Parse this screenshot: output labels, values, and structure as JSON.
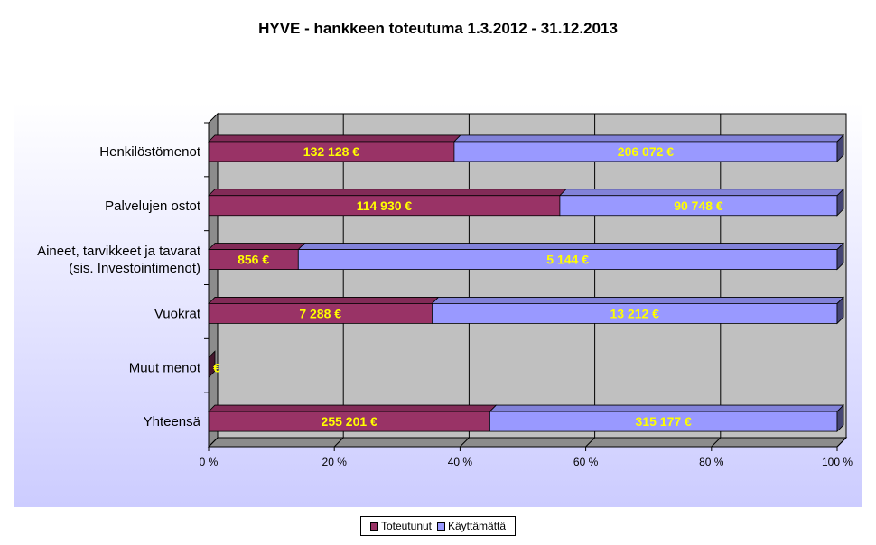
{
  "chart_data": {
    "type": "bar",
    "orientation": "horizontal",
    "stacked": "percent",
    "title": "HYVE - hankkeen toteutuma 1.3.2012 - 31.12.2013",
    "categories": [
      [
        "Henkilöstömenot"
      ],
      [
        "Palvelujen ostot"
      ],
      [
        "Aineet, tarvikkeet ja tavarat",
        "(sis. Investointimenot)"
      ],
      [
        "Vuokrat"
      ],
      [
        "Muut menot"
      ],
      [
        "Yhteensä"
      ]
    ],
    "series": [
      {
        "name": "Toteutunut",
        "color": "#993366",
        "values": [
          132128,
          114930,
          856,
          7288,
          0,
          255201
        ],
        "labels": [
          "132 128 €",
          "114 930 €",
          "856 €",
          "7 288 €",
          "€",
          "255 201 €"
        ]
      },
      {
        "name": "Käyttämättä",
        "color": "#9999ff",
        "values": [
          206072,
          90748,
          5144,
          13212,
          0,
          315177
        ],
        "labels": [
          "206 072 €",
          "90 748 €",
          "5 144 €",
          "13 212 €",
          "",
          "315 177 €"
        ]
      }
    ],
    "x_ticks": [
      "0 %",
      "20 %",
      "40 %",
      "60 %",
      "80 %",
      "100 %"
    ],
    "xlim": [
      0,
      100
    ],
    "grid": true,
    "legend_position": "bottom",
    "data_label_color": "#ffff00",
    "plot_background": "#c0c0c0",
    "chart_area_gradient": [
      "#ffffff",
      "#ccccff"
    ]
  }
}
